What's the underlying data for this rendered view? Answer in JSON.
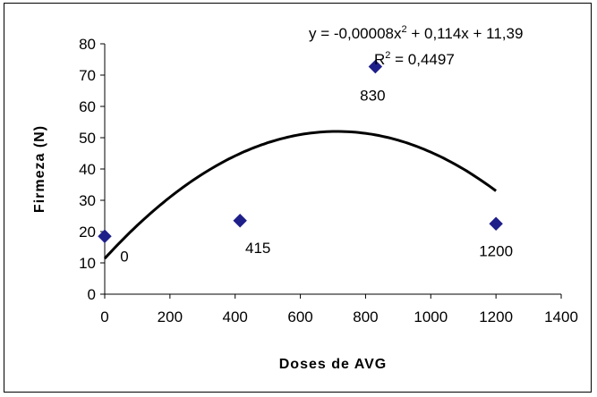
{
  "chart_data": {
    "type": "scatter",
    "xlabel": "Doses de AVG",
    "ylabel": "Firmeza (N)",
    "xlim": [
      0,
      1400
    ],
    "ylim": [
      0,
      80
    ],
    "x_ticks": [
      0,
      200,
      400,
      600,
      800,
      1000,
      1200,
      1400
    ],
    "y_ticks": [
      0,
      10,
      20,
      30,
      40,
      50,
      60,
      70,
      80
    ],
    "grid": false,
    "legend": "none",
    "series": [
      {
        "marker": "diamond",
        "color": "#1f1f8a",
        "points": [
          {
            "x": 0,
            "y": 18.5,
            "label": "0"
          },
          {
            "x": 415,
            "y": 23.5,
            "label": "415"
          },
          {
            "x": 830,
            "y": 72.7,
            "label": "830"
          },
          {
            "x": 1200,
            "y": 22.5,
            "label": "1200"
          }
        ]
      }
    ],
    "trendline": {
      "type": "polynomial",
      "coefficients": {
        "a": -8e-05,
        "b": 0.114,
        "c": 11.39
      },
      "x_range": [
        0,
        1200
      ],
      "color": "#000000"
    },
    "annotations": {
      "equation": {
        "prefix": "y = -0,00008x",
        "sup": "2",
        "suffix": " + 0,114x + 11,39"
      },
      "r_squared": {
        "prefix": "R",
        "sup": "2",
        "suffix": " = 0,4497"
      }
    }
  }
}
